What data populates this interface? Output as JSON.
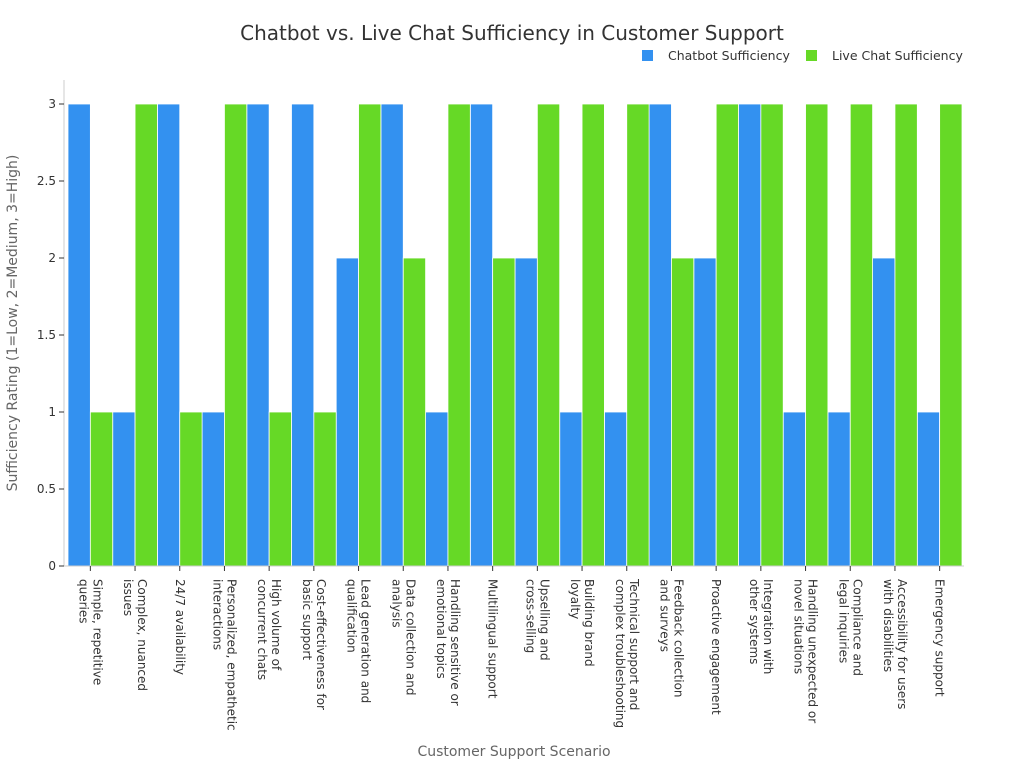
{
  "chart_data": {
    "type": "bar",
    "title": "Chatbot vs. Live Chat Sufficiency in Customer Support",
    "xlabel": "Customer Support Scenario",
    "ylabel": "Sufficiency Rating (1=Low, 2=Medium, 3=High)",
    "ylim": [
      0,
      3
    ],
    "yticks": [
      0,
      0.5,
      1,
      1.5,
      2,
      2.5,
      3
    ],
    "ytick_labels": [
      "0",
      "0.5",
      "1",
      "1.5",
      "2",
      "2.5",
      "3"
    ],
    "legend_position": "top-right",
    "grid": false,
    "categories": [
      [
        "Simple, repetitive",
        "queries"
      ],
      [
        "Complex, nuanced",
        "issues"
      ],
      [
        "24/7 availability"
      ],
      [
        "Personalized, empathetic",
        "interactions"
      ],
      [
        "High volume of",
        "concurrent chats"
      ],
      [
        "Cost-effectiveness for",
        "basic support"
      ],
      [
        "Lead generation and",
        "qualification"
      ],
      [
        "Data collection and",
        "analysis"
      ],
      [
        "Handling sensitive or",
        "emotional topics"
      ],
      [
        "Multilingual support"
      ],
      [
        "Upselling and",
        "cross-selling"
      ],
      [
        "Building brand",
        "loyalty"
      ],
      [
        "Technical support and",
        "complex troubleshooting"
      ],
      [
        "Feedback collection",
        "and surveys"
      ],
      [
        "Proactive engagement"
      ],
      [
        "Integration with",
        "other systems"
      ],
      [
        "Handling unexpected or",
        "novel situations"
      ],
      [
        "Compliance and",
        "legal inquiries"
      ],
      [
        "Accessibility for users",
        "with disabilities"
      ],
      [
        "Emergency support"
      ]
    ],
    "series": [
      {
        "name": "Chatbot Sufficiency",
        "color": "#3391f0",
        "values": [
          3,
          1,
          3,
          1,
          3,
          3,
          2,
          3,
          1,
          3,
          2,
          1,
          1,
          3,
          2,
          3,
          1,
          1,
          2,
          1
        ]
      },
      {
        "name": "Live Chat Sufficiency",
        "color": "#66d926",
        "values": [
          1,
          3,
          1,
          3,
          1,
          1,
          3,
          2,
          3,
          2,
          3,
          3,
          3,
          2,
          3,
          3,
          3,
          3,
          3,
          3
        ]
      }
    ]
  }
}
